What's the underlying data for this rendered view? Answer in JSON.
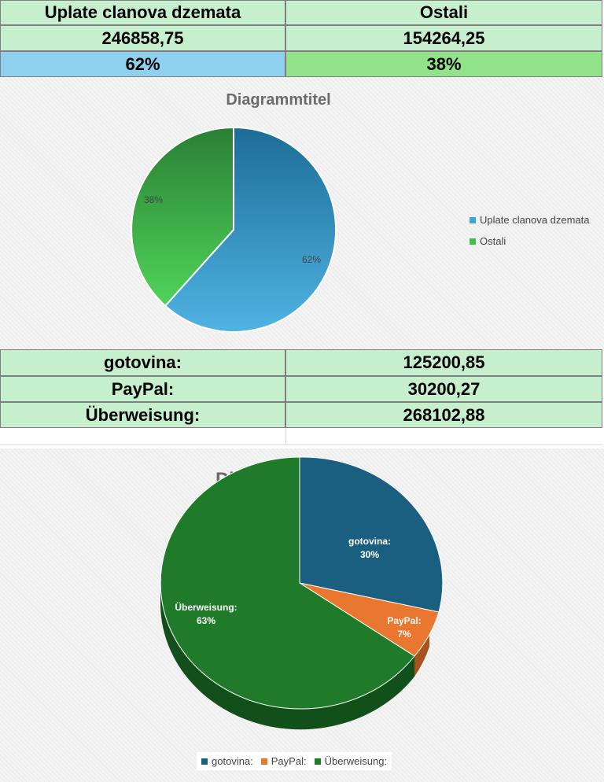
{
  "top_table": {
    "header": [
      "Uplate clanova dzemata",
      "Ostali"
    ],
    "values": [
      "246858,75",
      "154264,25"
    ],
    "percents": [
      "62%",
      "38%"
    ]
  },
  "chart1": {
    "title": "Diagrammtitel",
    "legend": [
      "Uplate clanova dzemata",
      "Ostali"
    ],
    "labels": [
      "62%",
      "38%"
    ],
    "colors": {
      "uplate": "#3fa6d6",
      "ostali": "#3fbf4a"
    }
  },
  "payment_table": {
    "rows": [
      {
        "label": "gotovina:",
        "value": "125200,85"
      },
      {
        "label": "PayPal:",
        "value": "30200,27"
      },
      {
        "label": "Überweisung:",
        "value": "268102,88"
      }
    ]
  },
  "chart2": {
    "title": "Diagrammtitel",
    "legend": [
      "gotovina:",
      "PayPal:",
      "Überweisung:"
    ],
    "slice_labels": [
      {
        "name": "gotovina:",
        "pct": "30%"
      },
      {
        "name": "PayPal:",
        "pct": "7%"
      },
      {
        "name": "Überweisung:",
        "pct": "63%"
      }
    ],
    "colors": {
      "gotovina": "#1a5e80",
      "paypal": "#e9772f",
      "uberweisung": "#1f7a2a"
    }
  },
  "chart_data": [
    {
      "type": "pie",
      "title": "Diagrammtitel",
      "categories": [
        "Uplate clanova dzemata",
        "Ostali"
      ],
      "values": [
        62,
        38
      ],
      "legend": "right"
    },
    {
      "type": "pie",
      "title": "Diagrammtitel",
      "categories": [
        "gotovina:",
        "PayPal:",
        "Überweisung:"
      ],
      "values": [
        30,
        7,
        63
      ],
      "legend": "bottom"
    }
  ]
}
